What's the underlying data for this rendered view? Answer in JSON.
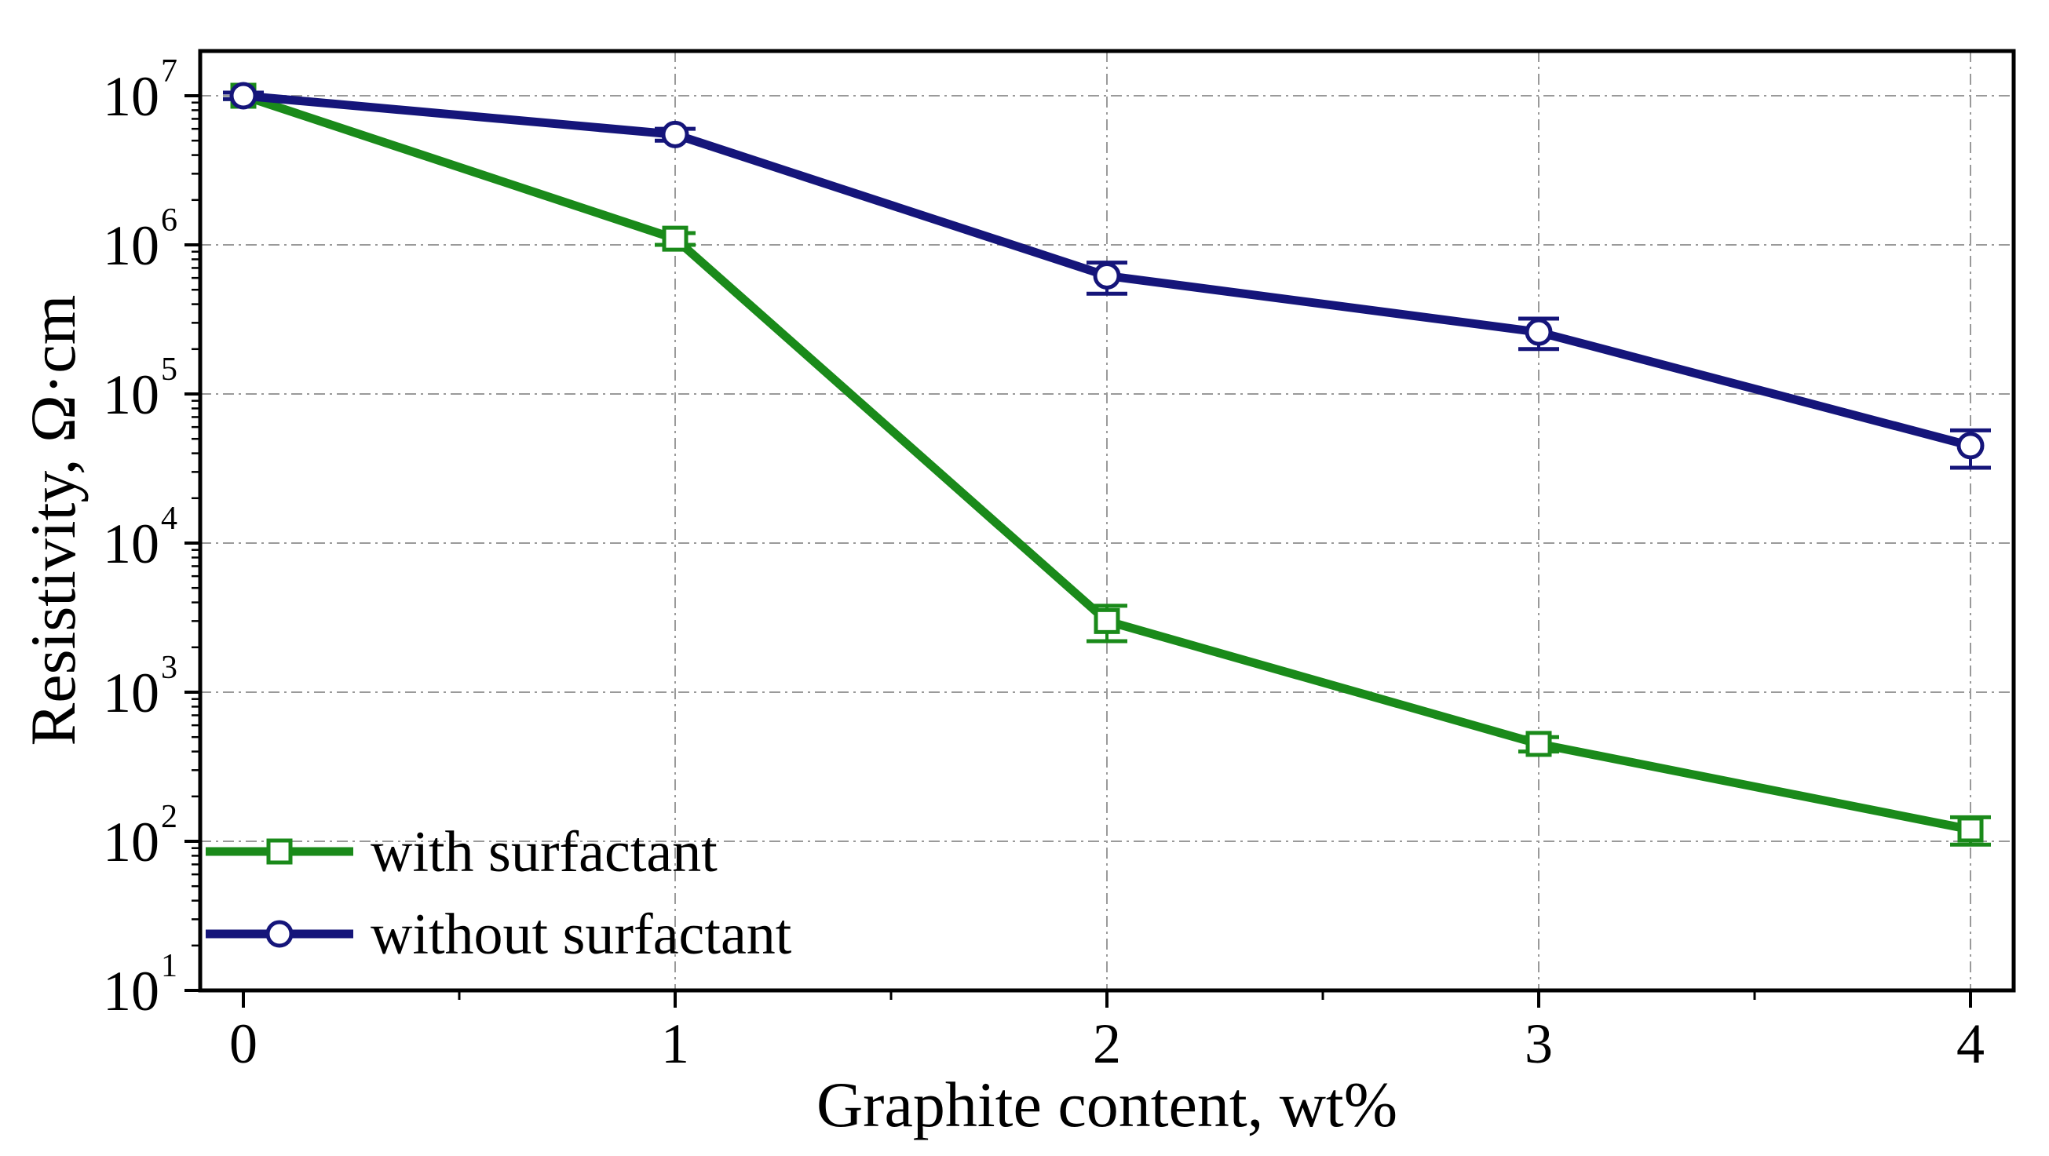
{
  "chart_data": {
    "type": "line",
    "xlabel": "Graphite content, wt%",
    "ylabel": "Resistivity, Ω·cm",
    "x_ticks": [
      "0",
      "1",
      "2",
      "3",
      "4"
    ],
    "y_ticks": [
      {
        "base": "10",
        "exp": "1"
      },
      {
        "base": "10",
        "exp": "2"
      },
      {
        "base": "10",
        "exp": "3"
      },
      {
        "base": "10",
        "exp": "4"
      },
      {
        "base": "10",
        "exp": "5"
      },
      {
        "base": "10",
        "exp": "6"
      },
      {
        "base": "10",
        "exp": "7"
      }
    ],
    "xlim": [
      -0.1,
      4.1
    ],
    "ylim_log10": [
      1,
      7.3
    ],
    "yscale": "log",
    "grid": true,
    "legend_position": "bottom-left",
    "series": [
      {
        "name": "with surfactant",
        "color": "#1a8a1a",
        "marker": "square",
        "x": [
          0,
          1,
          2,
          3,
          4
        ],
        "y": [
          10000000,
          1100000,
          3000,
          450,
          120
        ],
        "err_low": [
          9500000,
          1000000,
          2200,
          400,
          95
        ],
        "err_high": [
          10500000,
          1200000,
          3800,
          500,
          145
        ]
      },
      {
        "name": "without surfactant",
        "color": "#15157a",
        "marker": "circle",
        "x": [
          0,
          1,
          2,
          3,
          4
        ],
        "y": [
          10000000,
          5500000,
          620000,
          260000,
          45000
        ],
        "err_low": [
          9500000,
          5000000,
          470000,
          200000,
          32000
        ],
        "err_high": [
          10500000,
          6000000,
          760000,
          320000,
          57000
        ]
      }
    ]
  }
}
